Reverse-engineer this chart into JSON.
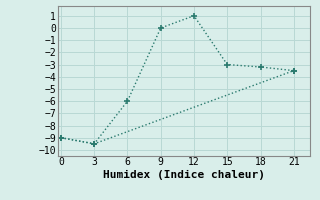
{
  "line1_x": [
    0,
    3,
    6,
    9,
    12,
    15,
    18,
    21
  ],
  "line1_y": [
    -9,
    -9.5,
    -6,
    0,
    1,
    -3,
    -3.2,
    -3.5
  ],
  "line2_x": [
    0,
    3,
    21
  ],
  "line2_y": [
    -9,
    -9.5,
    -3.5
  ],
  "line_color": "#2a7a6e",
  "bg_color": "#d9eeea",
  "grid_color": "#b8d8d4",
  "spine_color": "#888888",
  "xlabel": "Humidex (Indice chaleur)",
  "yticks": [
    1,
    0,
    -1,
    -2,
    -3,
    -4,
    -5,
    -6,
    -7,
    -8,
    -9,
    -10
  ],
  "xticks": [
    0,
    3,
    6,
    9,
    12,
    15,
    18,
    21
  ],
  "ylim": [
    -10.5,
    1.8
  ],
  "xlim": [
    -0.3,
    22.5
  ],
  "marker": "+",
  "markersize": 4,
  "markeredgewidth": 1.2,
  "linewidth": 1.0,
  "linestyle": ":",
  "font_family": "monospace",
  "xlabel_fontsize": 8,
  "tick_fontsize": 7
}
